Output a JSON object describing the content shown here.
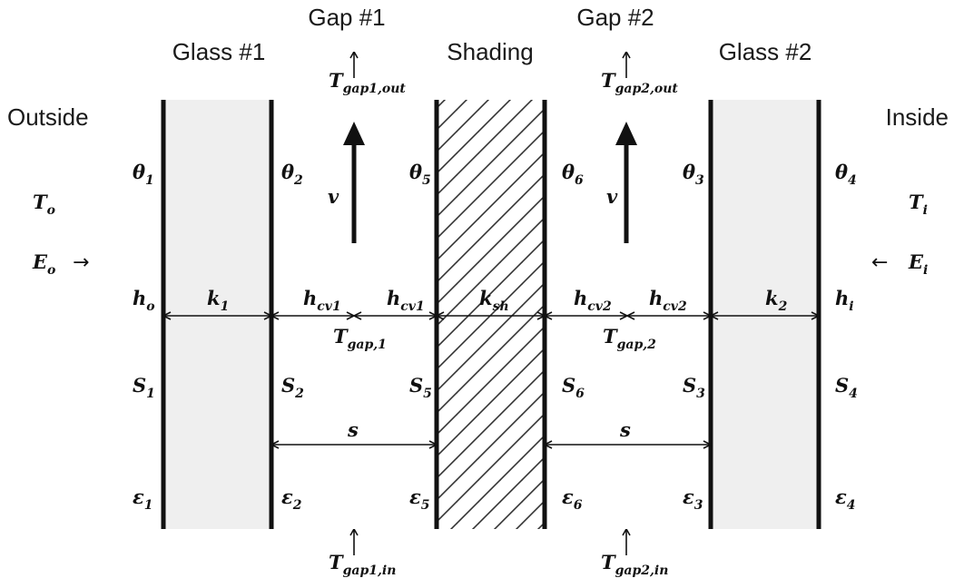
{
  "headers": {
    "glass1": "Glass #1",
    "gap1": "Gap #1",
    "shading": "Shading",
    "gap2": "Gap #2",
    "glass2": "Glass #2",
    "outside": "Outside",
    "inside": "Inside"
  },
  "arrows": {
    "right": "→",
    "left": "←"
  },
  "symbols": {
    "theta1": {
      "b": "θ",
      "s": "1"
    },
    "theta2": {
      "b": "θ",
      "s": "2"
    },
    "theta5": {
      "b": "θ",
      "s": "5"
    },
    "theta6": {
      "b": "θ",
      "s": "6"
    },
    "theta3": {
      "b": "θ",
      "s": "3"
    },
    "theta4": {
      "b": "θ",
      "s": "4"
    },
    "To": {
      "b": "T",
      "s": "o"
    },
    "Ti": {
      "b": "T",
      "s": "i"
    },
    "Eo": {
      "b": "E",
      "s": "o"
    },
    "Ei": {
      "b": "E",
      "s": "i"
    },
    "ho": {
      "b": "h",
      "s": "o"
    },
    "hi": {
      "b": "h",
      "s": "i"
    },
    "k1": {
      "b": "k",
      "s": "1"
    },
    "k2": {
      "b": "k",
      "s": "2"
    },
    "ksh": {
      "b": "k",
      "s": "sh"
    },
    "hcv1a": {
      "b": "h",
      "s": "cv1"
    },
    "hcv1b": {
      "b": "h",
      "s": "cv1"
    },
    "hcv2a": {
      "b": "h",
      "s": "cv2"
    },
    "hcv2b": {
      "b": "h",
      "s": "cv2"
    },
    "Tgap1": {
      "b": "T",
      "s": "gap,1"
    },
    "Tgap2": {
      "b": "T",
      "s": "gap,2"
    },
    "Tgap1out": {
      "b": "T",
      "s": "gap1,out"
    },
    "Tgap2out": {
      "b": "T",
      "s": "gap2,out"
    },
    "Tgap1in": {
      "b": "T",
      "s": "gap1,in"
    },
    "Tgap2in": {
      "b": "T",
      "s": "gap2,in"
    },
    "v1": {
      "b": "v",
      "s": ""
    },
    "v2": {
      "b": "v",
      "s": ""
    },
    "S1": {
      "b": "S",
      "s": "1"
    },
    "S2": {
      "b": "S",
      "s": "2"
    },
    "S5": {
      "b": "S",
      "s": "5"
    },
    "S6": {
      "b": "S",
      "s": "6"
    },
    "S3": {
      "b": "S",
      "s": "3"
    },
    "S4": {
      "b": "S",
      "s": "4"
    },
    "s1": {
      "b": "s",
      "s": ""
    },
    "s2": {
      "b": "s",
      "s": ""
    },
    "eps1": {
      "b": "ε",
      "s": "1"
    },
    "eps2": {
      "b": "ε",
      "s": "2"
    },
    "eps5": {
      "b": "ε",
      "s": "5"
    },
    "eps6": {
      "b": "ε",
      "s": "6"
    },
    "eps3": {
      "b": "ε",
      "s": "3"
    },
    "eps4": {
      "b": "ε",
      "s": "4"
    }
  }
}
